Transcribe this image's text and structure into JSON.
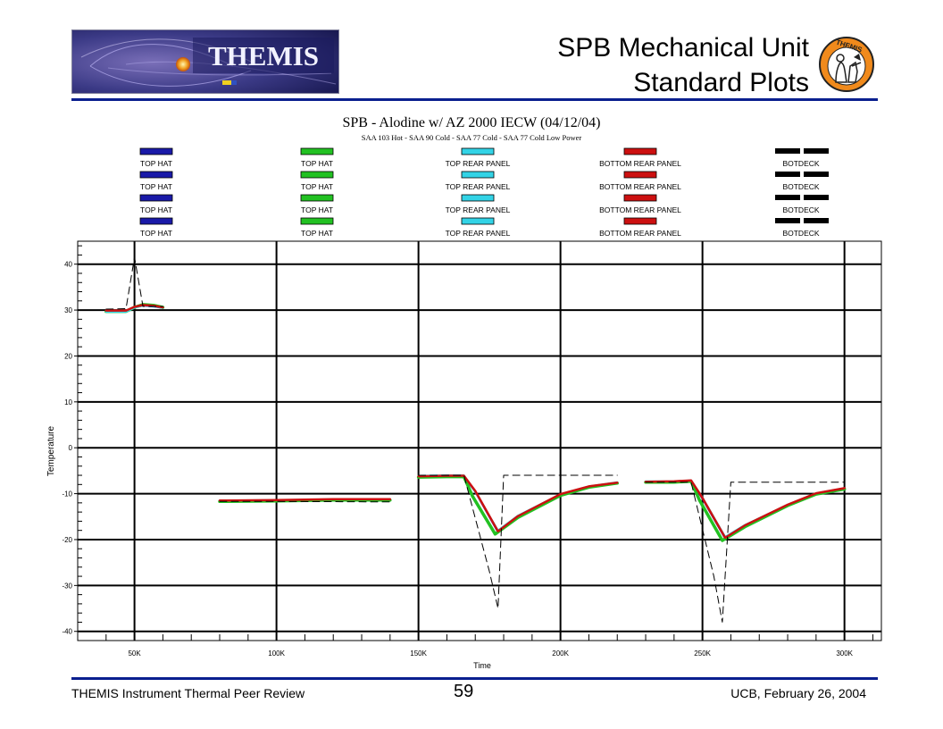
{
  "header": {
    "logo_text": "THEMIS",
    "title_line1": "SPB Mechanical Unit",
    "title_line2": "Standard Plots",
    "emblem_text": "THEMIS"
  },
  "footer": {
    "left": "THEMIS Instrument Thermal Peer Review",
    "page": "59",
    "right": "UCB, February 26, 2004"
  },
  "colors": {
    "rule": "#0a1f8f",
    "grid": "#000000"
  },
  "chart_data": {
    "type": "line",
    "title": "SPB - Alodine w/ AZ 2000 IECW  (04/12/04)",
    "subtitle": "SAA 103 Hot - SAA 90 Cold - SAA 77 Cold - SAA 77 Cold Low Power",
    "xlabel": "Time",
    "ylabel": "Temperature",
    "xlim": [
      30000,
      313000
    ],
    "ylim": [
      -42,
      45
    ],
    "xticks": [
      50000,
      100000,
      150000,
      200000,
      250000,
      300000
    ],
    "xtick_labels": [
      "50K",
      "100K",
      "150K",
      "200K",
      "250K",
      "300K"
    ],
    "yticks": [
      -40,
      -30,
      -20,
      -10,
      0,
      10,
      20,
      30,
      40
    ],
    "ytick_labels": [
      "-40",
      "-30",
      "-20",
      "-10",
      "0",
      "10",
      "20",
      "30",
      "40"
    ],
    "grid": true,
    "legend_position": "top",
    "legend": [
      {
        "label": "TOP HAT",
        "color": "#1a1aa8",
        "style": "solid"
      },
      {
        "label": "TOP HAT",
        "color": "#22c122",
        "style": "solid"
      },
      {
        "label": "TOP REAR PANEL",
        "color": "#33d3e6",
        "style": "solid"
      },
      {
        "label": "BOTTOM REAR PANEL",
        "color": "#cc1010",
        "style": "solid"
      },
      {
        "label": "BOTDECK",
        "color": "#000000",
        "style": "dashed"
      }
    ],
    "legend_rows": 4,
    "series": [
      {
        "name": "TOP HAT",
        "color": "#1a1aa8",
        "width": 2.5,
        "dash": "",
        "segments": [
          [
            [
              40000,
              29.8
            ],
            [
              47000,
              29.8
            ],
            [
              50000,
              30.6
            ],
            [
              53000,
              31.0
            ],
            [
              57000,
              30.8
            ],
            [
              60000,
              30.5
            ]
          ],
          [
            [
              80000,
              -11.6
            ],
            [
              100000,
              -11.5
            ],
            [
              120000,
              -11.3
            ],
            [
              140000,
              -11.3
            ]
          ],
          [
            [
              150000,
              -6.3
            ],
            [
              160000,
              -6.2
            ],
            [
              166000,
              -6.2
            ],
            [
              170000,
              -9.5
            ],
            [
              178000,
              -18.3
            ],
            [
              185000,
              -15.0
            ],
            [
              200000,
              -10.2
            ],
            [
              210000,
              -8.5
            ],
            [
              220000,
              -7.6
            ]
          ],
          [
            [
              230000,
              -7.4
            ],
            [
              240000,
              -7.4
            ],
            [
              246000,
              -7.2
            ],
            [
              250000,
              -11.0
            ],
            [
              258000,
              -19.7
            ],
            [
              265000,
              -17.0
            ],
            [
              280000,
              -12.5
            ],
            [
              290000,
              -10.0
            ],
            [
              300000,
              -8.9
            ]
          ]
        ]
      },
      {
        "name": "TOP HAT",
        "color": "#22c122",
        "width": 3.5,
        "dash": "",
        "segments": [
          [
            [
              40000,
              29.7
            ],
            [
              47000,
              29.7
            ],
            [
              50000,
              30.6
            ],
            [
              53000,
              31.2
            ],
            [
              57000,
              31.0
            ],
            [
              60000,
              30.6
            ]
          ],
          [
            [
              80000,
              -11.7
            ],
            [
              100000,
              -11.6
            ],
            [
              120000,
              -11.4
            ],
            [
              140000,
              -11.4
            ]
          ],
          [
            [
              150000,
              -6.4
            ],
            [
              160000,
              -6.3
            ],
            [
              166000,
              -6.3
            ],
            [
              169000,
              -10.5
            ],
            [
              177000,
              -18.8
            ],
            [
              185000,
              -15.2
            ],
            [
              200000,
              -10.4
            ],
            [
              210000,
              -8.6
            ],
            [
              220000,
              -7.7
            ]
          ],
          [
            [
              230000,
              -7.5
            ],
            [
              240000,
              -7.5
            ],
            [
              246000,
              -7.3
            ],
            [
              249000,
              -11.5
            ],
            [
              257000,
              -20.2
            ],
            [
              265000,
              -17.2
            ],
            [
              280000,
              -12.6
            ],
            [
              290000,
              -10.1
            ],
            [
              300000,
              -9.0
            ]
          ]
        ]
      },
      {
        "name": "TOP REAR PANEL",
        "color": "#33d3e6",
        "width": 2,
        "dash": "",
        "segments": [
          [
            [
              40000,
              29.6
            ],
            [
              47000,
              29.6
            ],
            [
              50000,
              30.5
            ],
            [
              53000,
              31.0
            ],
            [
              57000,
              30.8
            ],
            [
              60000,
              30.5
            ]
          ],
          [
            [
              80000,
              -11.5
            ],
            [
              100000,
              -11.4
            ],
            [
              120000,
              -11.2
            ],
            [
              140000,
              -11.2
            ]
          ],
          [
            [
              150000,
              -6.1
            ],
            [
              160000,
              -6.0
            ],
            [
              166000,
              -6.0
            ],
            [
              170000,
              -9.6
            ],
            [
              178000,
              -18.0
            ],
            [
              185000,
              -14.8
            ],
            [
              200000,
              -10.1
            ],
            [
              210000,
              -8.4
            ],
            [
              220000,
              -7.5
            ]
          ],
          [
            [
              230000,
              -7.3
            ],
            [
              240000,
              -7.3
            ],
            [
              246000,
              -7.1
            ],
            [
              250000,
              -10.8
            ],
            [
              258000,
              -19.4
            ],
            [
              265000,
              -16.8
            ],
            [
              280000,
              -12.4
            ],
            [
              290000,
              -9.9
            ],
            [
              300000,
              -8.8
            ]
          ]
        ]
      },
      {
        "name": "BOTTOM REAR PANEL",
        "color": "#cc1010",
        "width": 2.5,
        "dash": "",
        "segments": [
          [
            [
              40000,
              29.9
            ],
            [
              47000,
              29.9
            ],
            [
              50000,
              30.7
            ],
            [
              53000,
              31.1
            ],
            [
              57000,
              30.9
            ],
            [
              60000,
              30.6
            ]
          ],
          [
            [
              80000,
              -11.5
            ],
            [
              100000,
              -11.4
            ],
            [
              120000,
              -11.2
            ],
            [
              140000,
              -11.2
            ]
          ],
          [
            [
              150000,
              -6.2
            ],
            [
              160000,
              -6.1
            ],
            [
              166000,
              -6.1
            ],
            [
              170000,
              -9.4
            ],
            [
              178000,
              -18.2
            ],
            [
              185000,
              -14.9
            ],
            [
              200000,
              -10.1
            ],
            [
              210000,
              -8.4
            ],
            [
              220000,
              -7.6
            ]
          ],
          [
            [
              230000,
              -7.4
            ],
            [
              240000,
              -7.3
            ],
            [
              246000,
              -7.1
            ],
            [
              250000,
              -10.9
            ],
            [
              258000,
              -19.6
            ],
            [
              265000,
              -16.9
            ],
            [
              280000,
              -12.4
            ],
            [
              290000,
              -9.9
            ],
            [
              300000,
              -8.8
            ]
          ]
        ]
      },
      {
        "name": "BOTDECK",
        "color": "#000000",
        "width": 1,
        "dash": "8,5",
        "segments": [
          [
            [
              40000,
              30.2
            ],
            [
              47000,
              30.3
            ],
            [
              50000,
              41.5
            ],
            [
              53000,
              30.8
            ],
            [
              60000,
              30.8
            ]
          ],
          [
            [
              80000,
              -11.7
            ],
            [
              100000,
              -11.7
            ],
            [
              140000,
              -11.8
            ]
          ],
          [
            [
              150000,
              -6.0
            ],
            [
              166000,
              -6.0
            ],
            [
              175000,
              -27.0
            ],
            [
              178000,
              -35.0
            ],
            [
              180000,
              -6.0
            ],
            [
              220000,
              -6.0
            ]
          ],
          [
            [
              230000,
              -7.5
            ],
            [
              246000,
              -7.5
            ],
            [
              254000,
              -28.0
            ],
            [
              257000,
              -38.0
            ],
            [
              260000,
              -7.5
            ],
            [
              300000,
              -7.5
            ]
          ]
        ]
      }
    ]
  }
}
